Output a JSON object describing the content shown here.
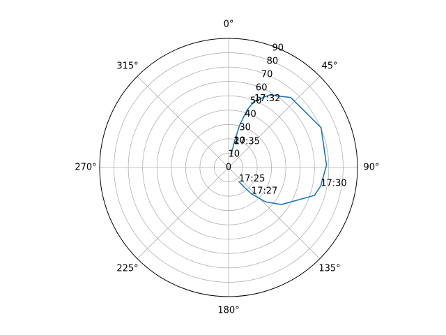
{
  "chart_data": {
    "type": "line",
    "projection": "polar",
    "theta_direction": "clockwise",
    "theta_zero_location": "N",
    "r_axis": "elevation",
    "r_ticks": [
      0,
      10,
      20,
      30,
      40,
      50,
      60,
      70,
      80,
      90
    ],
    "r_tick_labels": [
      "0",
      "10",
      "20",
      "30",
      "40",
      "50",
      "60",
      "70",
      "80",
      "90"
    ],
    "theta_ticks": [
      0,
      45,
      90,
      135,
      180,
      225,
      270,
      315
    ],
    "theta_tick_labels": [
      "0°",
      "45°",
      "90°",
      "135°",
      "180°",
      "225°",
      "270°",
      "315°"
    ],
    "grid": true,
    "colors": {
      "series": "#1f77b4",
      "grid": "#b0b0b0",
      "spine": "#000000"
    },
    "series": [
      {
        "points": [
          {
            "azimuth": 143.6,
            "elevation": 12.2
          },
          {
            "azimuth": 141.5,
            "elevation": 17.7
          },
          {
            "azimuth": 139.0,
            "elevation": 24.3
          },
          {
            "azimuth": 133.0,
            "elevation": 35.0
          },
          {
            "azimuth": 125.0,
            "elevation": 45.0
          },
          {
            "azimuth": 108.0,
            "elevation": 63.0
          },
          {
            "azimuth": 101.3,
            "elevation": 65.6
          },
          {
            "azimuth": 88.6,
            "elevation": 68.4
          },
          {
            "azimuth": 66.7,
            "elevation": 70.3
          },
          {
            "azimuth": 41.6,
            "elevation": 65.3
          },
          {
            "azimuth": 29.3,
            "elevation": 57.9
          },
          {
            "azimuth": 21.3,
            "elevation": 49.5
          },
          {
            "azimuth": 17.9,
            "elevation": 42.2
          },
          {
            "azimuth": 14.5,
            "elevation": 30.0
          },
          {
            "azimuth": 12.5,
            "elevation": 16.8
          },
          {
            "azimuth": 11.8,
            "elevation": 8.2
          }
        ]
      }
    ],
    "annotations": [
      {
        "text": "17:25",
        "azimuth": 143.6,
        "elevation": 12.2
      },
      {
        "text": "17:27",
        "azimuth": 139.0,
        "elevation": 24.3
      },
      {
        "text": "17:30",
        "azimuth": 101.3,
        "elevation": 65.6
      },
      {
        "text": "17:32",
        "azimuth": 21.3,
        "elevation": 49.5
      },
      {
        "text": "17:35",
        "azimuth": 12.5,
        "elevation": 16.8
      }
    ]
  }
}
